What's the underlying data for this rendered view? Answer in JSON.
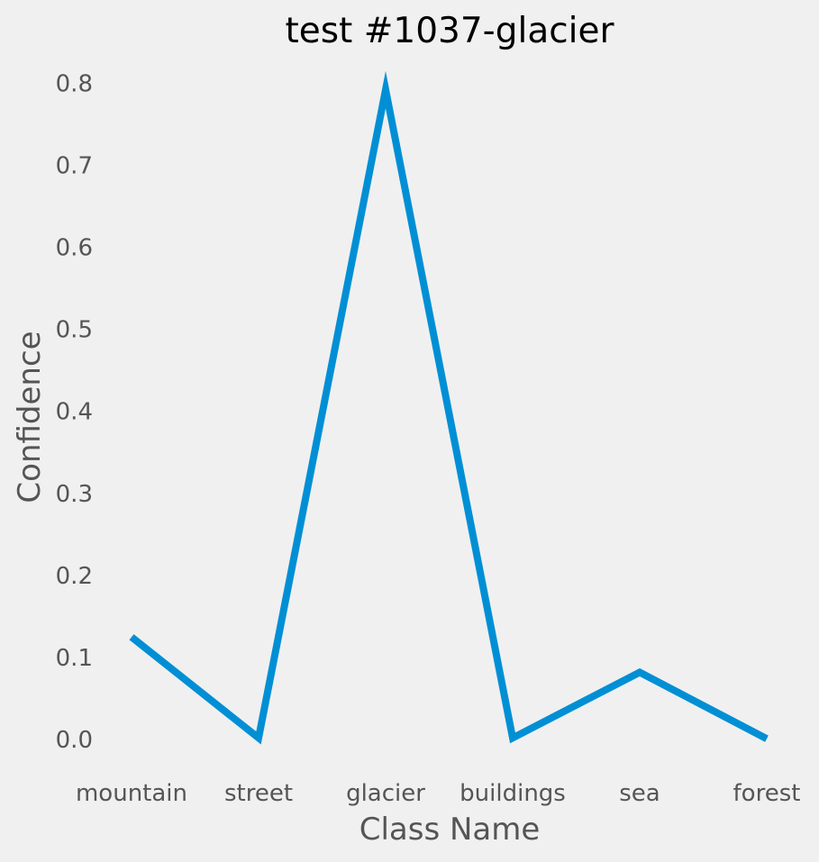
{
  "chart_data": {
    "type": "line",
    "title": "test #1037-glacier",
    "xlabel": "Class Name",
    "ylabel": "Confidence",
    "categories": [
      "mountain",
      "street",
      "glacier",
      "buildings",
      "sea",
      "forest"
    ],
    "series": [
      {
        "values": [
          0.125,
          0.002,
          0.792,
          0.002,
          0.082,
          0.001
        ]
      }
    ],
    "yticks": [
      "0.0",
      "0.1",
      "0.2",
      "0.3",
      "0.4",
      "0.5",
      "0.6",
      "0.7",
      "0.8"
    ],
    "ylim": [
      -0.035,
      0.83
    ],
    "grid": false,
    "legend": "none",
    "colors": {
      "background": "#f0f0f0",
      "line": "#008fd5",
      "text": "#555555",
      "title": "#000000"
    }
  }
}
